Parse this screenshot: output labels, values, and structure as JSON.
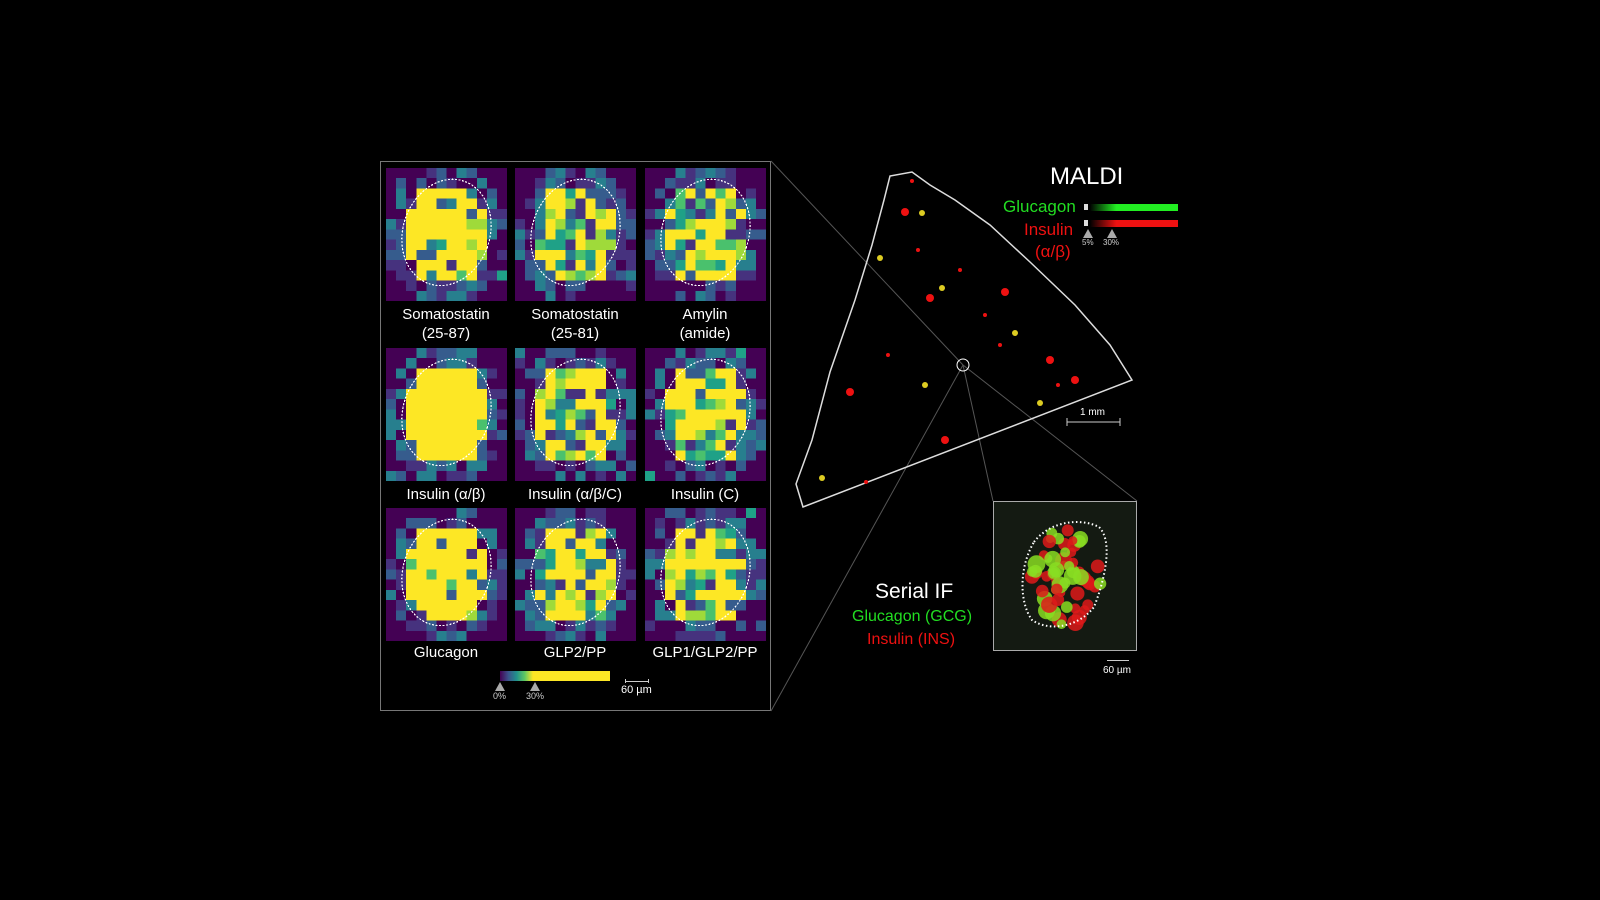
{
  "left_panel": {
    "tiles": [
      {
        "label_line1": "Somatostatin",
        "label_line2": "(25-87)"
      },
      {
        "label_line1": "Somatostatin",
        "label_line2": "(25-81)"
      },
      {
        "label_line1": "Amylin",
        "label_line2": "(amide)"
      },
      {
        "label_line1": "Insulin (α/β)",
        "label_line2": ""
      },
      {
        "label_line1": "Insulin (α/β/C)",
        "label_line2": ""
      },
      {
        "label_line1": "Insulin (C)",
        "label_line2": ""
      },
      {
        "label_line1": "Glucagon",
        "label_line2": ""
      },
      {
        "label_line1": "GLP2/PP",
        "label_line2": ""
      },
      {
        "label_line1": "GLP1/GLP2/PP",
        "label_line2": ""
      }
    ],
    "colorbar": {
      "min_label": "0%",
      "threshold_label": "30%",
      "colormap": "viridis"
    },
    "scale_bar": "60 µm"
  },
  "maldi": {
    "title": "MALDI",
    "legend": [
      {
        "label": "Glucagon",
        "color": "#22dd22"
      },
      {
        "label": "Insulin",
        "label2": "(α/β)",
        "color": "#ee1111"
      }
    ],
    "ticks": [
      "5%",
      "30%"
    ],
    "scale_bar": "1 mm"
  },
  "serial_if": {
    "title": "Serial IF",
    "lines": [
      {
        "label": "Glucagon (GCG)",
        "color": "#22dd22"
      },
      {
        "label": "Insulin (INS)",
        "color": "#ee1111"
      }
    ],
    "scale_bar": "60 µm"
  }
}
